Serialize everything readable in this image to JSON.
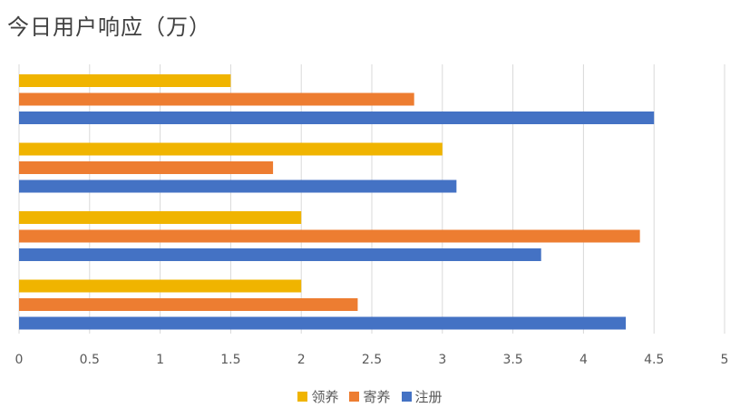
{
  "chart_data": {
    "type": "bar",
    "orientation": "horizontal",
    "title": "今日用户响应（万）",
    "categories": [
      "",
      "",
      "",
      ""
    ],
    "series": [
      {
        "name": "领养",
        "color": "#F0B400",
        "values": [
          1.5,
          3,
          2,
          2
        ]
      },
      {
        "name": "寄养",
        "color": "#ED7D31",
        "values": [
          2.8,
          1.8,
          4.4,
          2.4
        ]
      },
      {
        "name": "注册",
        "color": "#4472C4",
        "values": [
          4.5,
          3.1,
          3.7,
          4.3
        ]
      }
    ],
    "xlim": [
      0,
      5
    ],
    "xticks": [
      "0",
      "0.5",
      "1",
      "1.5",
      "2",
      "2.5",
      "3",
      "3.5",
      "4",
      "4.5",
      "5"
    ],
    "grid": true,
    "legend_position": "bottom"
  }
}
